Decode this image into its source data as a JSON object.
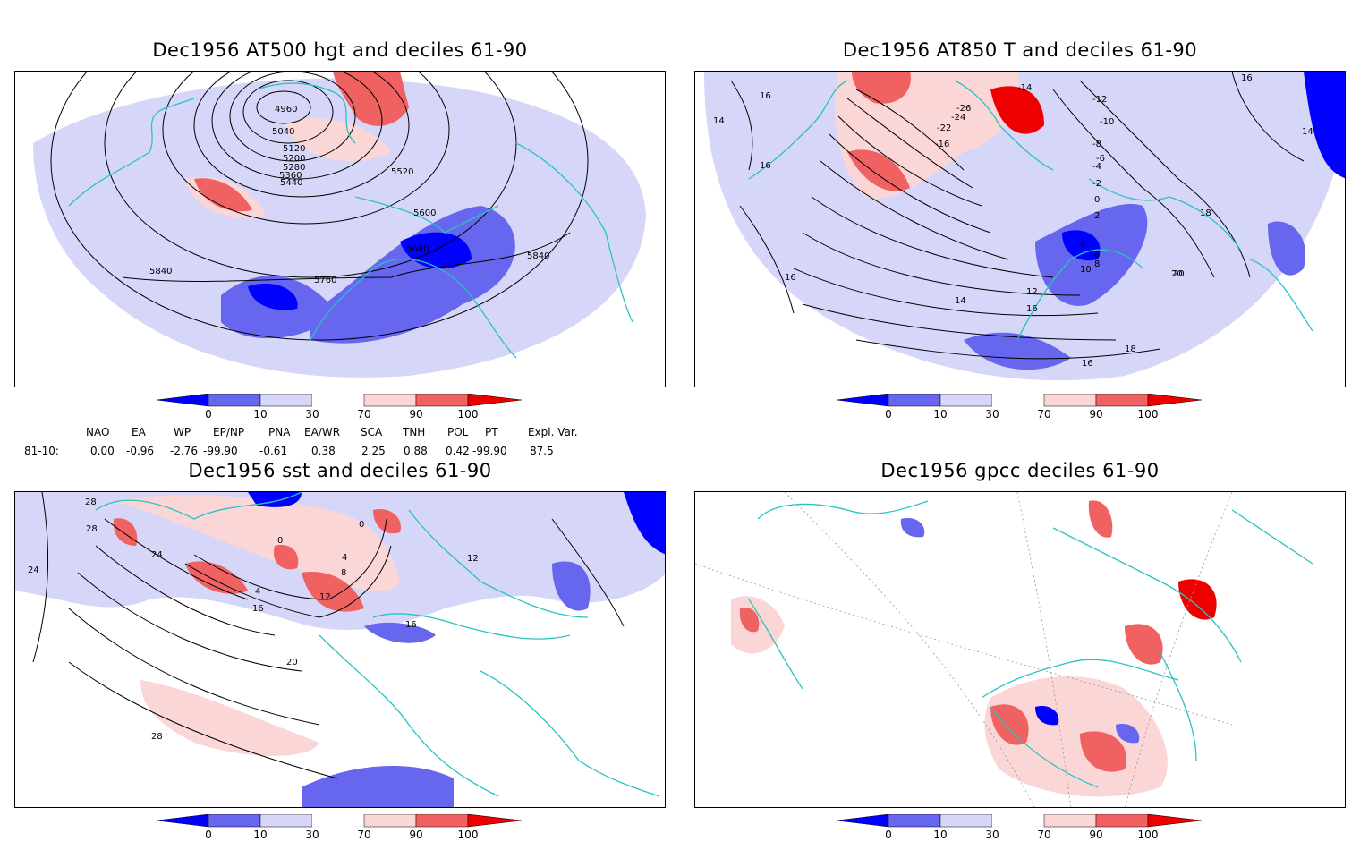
{
  "colors": {
    "d0": "#0000ff",
    "d10": "#6666ee",
    "d30": "#d6d6f8",
    "d70": "#fbd6d6",
    "d90": "#f06262",
    "d100": "#ee0000",
    "coast": "#2ac2c2",
    "contour": "#000000"
  },
  "panels": [
    {
      "title": "Dec1956 AT500 hgt and deciles 61-90",
      "labels": [
        "4960",
        "5040",
        "5120",
        "5200",
        "5280",
        "5360",
        "5440",
        "5520",
        "5600",
        "5680",
        "5760",
        "5840",
        "5840"
      ]
    },
    {
      "title": "Dec1956 AT850 T and deciles 61-90",
      "labels": [
        "-14",
        "-12",
        "-10",
        "-8",
        "-6",
        "-4",
        "-2",
        "0",
        "2",
        "4",
        "6",
        "8",
        "10",
        "12",
        "14",
        "16",
        "18",
        "20",
        "-26",
        "-24",
        "-22",
        "-16",
        "16",
        "14",
        "16",
        "14",
        "16",
        "16",
        "18",
        "20",
        "16"
      ]
    },
    {
      "title": "Dec1956 sst and deciles 61-90",
      "labels": [
        "28",
        "28",
        "24",
        "24",
        "0",
        "0",
        "4",
        "8",
        "12",
        "4",
        "16",
        "16",
        "20",
        "28",
        "12"
      ]
    },
    {
      "title": "Dec1956 gpcc deciles 61-90",
      "labels": []
    }
  ],
  "colorbar": {
    "ticks": [
      "0",
      "10",
      "30",
      "70",
      "90",
      "100"
    ]
  },
  "indices": {
    "headers": [
      "NAO",
      "EA",
      "WP",
      "EP/NP",
      "PNA",
      "EA/WR",
      "SCA",
      "TNH",
      "POL",
      "PT",
      "Expl. Var."
    ],
    "row_label": "81-10:",
    "values": [
      "0.00",
      "-0.96",
      "-2.76",
      "-99.90",
      "-0.61",
      "0.38",
      "2.25",
      "0.88",
      "0.42",
      "-99.90",
      "87.5"
    ]
  }
}
